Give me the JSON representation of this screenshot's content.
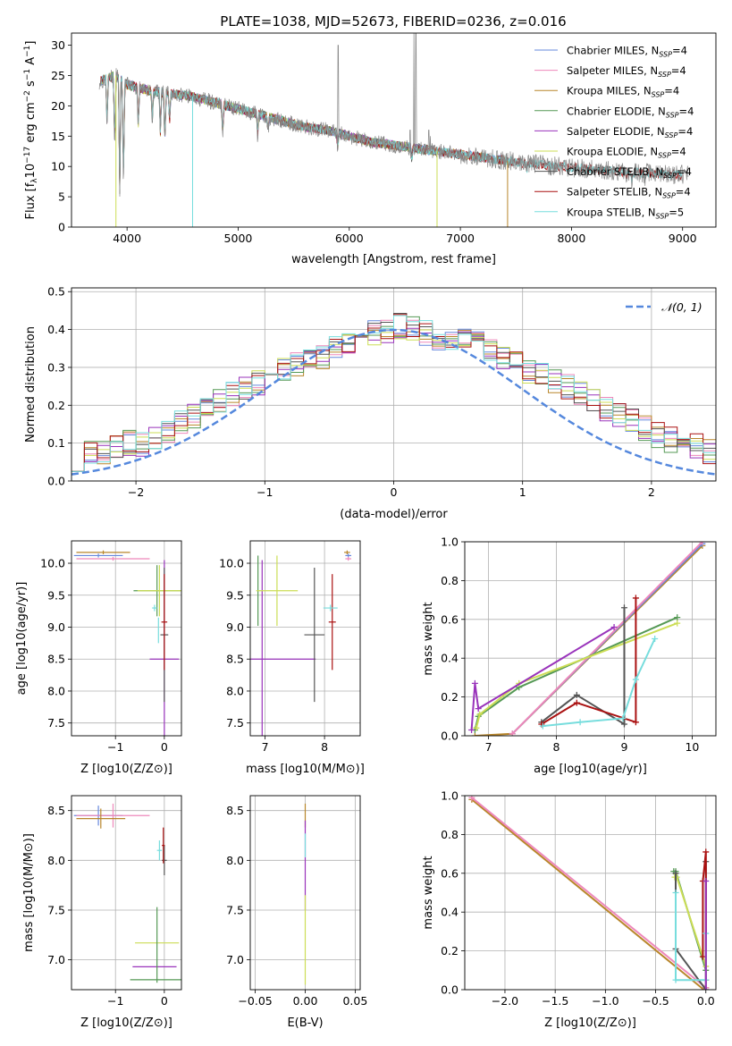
{
  "figure": {
    "title": "PLATE=1038, MJD=52673, FIBERID=0236, z=0.016"
  },
  "colors": {
    "Chabrier MILES": "#6688dd",
    "Salpeter MILES": "#ee88bb",
    "Kroupa MILES": "#b8862b",
    "Chabrier ELODIE": "#559955",
    "Salpeter ELODIE": "#9933bb",
    "Kroupa ELODIE": "#ccdd55",
    "Chabrier STELIB": "#555555",
    "Salpeter STELIB": "#aa1111",
    "Kroupa STELIB": "#77dddd",
    "data": "#888888",
    "normal": "#5588dd",
    "orange": "#dd7733",
    "lightgreen": "#bbee66"
  },
  "chart_data": [
    {
      "id": "spectrum",
      "type": "line",
      "title": "PLATE=1038, MJD=52673, FIBERID=0236, z=0.016",
      "xlabel": "wavelength [Angstrom, rest frame]",
      "ylabel": "Flux [f_λ 10^-17 erg cm^-2 s^-1 A^-1]",
      "xlim": [
        3500,
        9300
      ],
      "ylim": [
        0,
        32
      ],
      "xticks": [
        4000,
        5000,
        6000,
        7000,
        8000,
        9000
      ],
      "yticks": [
        0,
        5,
        10,
        15,
        20,
        25,
        30
      ],
      "grid": false,
      "legend_position": "top-right",
      "continuum": [
        [
          3750,
          24
        ],
        [
          3900,
          25
        ],
        [
          4000,
          23.5
        ],
        [
          4200,
          22.5
        ],
        [
          4400,
          22
        ],
        [
          4600,
          21.5
        ],
        [
          4800,
          20.5
        ],
        [
          5000,
          19.5
        ],
        [
          5200,
          18.5
        ],
        [
          5400,
          17.5
        ],
        [
          5600,
          16.5
        ],
        [
          5800,
          16
        ],
        [
          6000,
          15
        ],
        [
          6200,
          14
        ],
        [
          6400,
          13.5
        ],
        [
          6600,
          13
        ],
        [
          6800,
          12.5
        ],
        [
          7000,
          12
        ],
        [
          7200,
          11.5
        ],
        [
          7400,
          11
        ],
        [
          7600,
          10.5
        ],
        [
          7800,
          10.2
        ],
        [
          8000,
          9.8
        ],
        [
          8200,
          9.5
        ],
        [
          8400,
          9.2
        ],
        [
          8600,
          9
        ],
        [
          8800,
          8.8
        ],
        [
          9000,
          8.6
        ],
        [
          9050,
          8.6
        ]
      ],
      "absorption_lines": [
        [
          3820,
          17
        ],
        [
          3889,
          12
        ],
        [
          3934,
          4
        ],
        [
          3968,
          6
        ],
        [
          4101,
          16
        ],
        [
          4227,
          17
        ],
        [
          4300,
          15
        ],
        [
          4340,
          13
        ],
        [
          4383,
          17
        ],
        [
          4861,
          15
        ],
        [
          5175,
          15
        ],
        [
          5270,
          16
        ],
        [
          5895,
          13
        ],
        [
          6563,
          11
        ],
        [
          7600,
          9
        ],
        [
          8498,
          8
        ],
        [
          8542,
          7.5
        ],
        [
          8662,
          8
        ]
      ],
      "emission_spikes": [
        [
          5900,
          30
        ],
        [
          6548,
          16
        ],
        [
          6583,
          32
        ],
        [
          6600,
          32
        ],
        [
          6716,
          16
        ],
        [
          6731,
          15
        ]
      ],
      "series": [
        {
          "name": "Chabrier MILES",
          "nssp": "4",
          "xmax": 7400
        },
        {
          "name": "Salpeter MILES",
          "nssp": "4",
          "xmax": 7400
        },
        {
          "name": "Kroupa MILES",
          "nssp": "4",
          "xmax": 7440
        },
        {
          "name": "Chabrier ELODIE",
          "nssp": "4",
          "xmax": 6800
        },
        {
          "name": "Salpeter ELODIE",
          "nssp": "4",
          "xmax": 6800
        },
        {
          "name": "Kroupa ELODIE",
          "nssp": "4",
          "xmax": 6800
        },
        {
          "name": "Chabrier STELIB",
          "nssp": "4",
          "xmax": 9000
        },
        {
          "name": "Salpeter STELIB",
          "nssp": "4",
          "xmax": 9000
        },
        {
          "name": "Kroupa STELIB",
          "nssp": "5",
          "xmax": 9000
        }
      ]
    },
    {
      "id": "residuals",
      "type": "histogram",
      "xlabel": "(data-model)/error",
      "ylabel": "Normed distribution",
      "xlim": [
        -2.5,
        2.5
      ],
      "ylim": [
        0,
        0.51
      ],
      "xticks": [
        -2,
        -1,
        0,
        1,
        2
      ],
      "yticks": [
        0.0,
        0.1,
        0.2,
        0.3,
        0.4,
        0.5
      ],
      "grid": true,
      "legend": [
        "𝒩(0, 1)"
      ],
      "legend_position": "top-right",
      "bin_edges_start": -2.5,
      "bin_width": 0.1,
      "base_heights": [
        0.06,
        0.07,
        0.08,
        0.09,
        0.1,
        0.1,
        0.11,
        0.13,
        0.15,
        0.17,
        0.19,
        0.21,
        0.23,
        0.25,
        0.26,
        0.28,
        0.3,
        0.31,
        0.32,
        0.33,
        0.35,
        0.37,
        0.38,
        0.39,
        0.4,
        0.41,
        0.4,
        0.39,
        0.38,
        0.37,
        0.37,
        0.36,
        0.34,
        0.33,
        0.31,
        0.29,
        0.28,
        0.26,
        0.25,
        0.23,
        0.21,
        0.19,
        0.17,
        0.16,
        0.14,
        0.12,
        0.11,
        0.1,
        0.09,
        0.08
      ],
      "normal_curve": {
        "mean": 0,
        "sigma": 1
      }
    },
    {
      "id": "age-vs-Z",
      "type": "scatter",
      "xlabel": "Z [log10(Z/Z⊙)]",
      "ylabel": "age [log10(age/yr)]",
      "xlim": [
        -1.9,
        0.35
      ],
      "ylim": [
        7.3,
        10.35
      ],
      "xticks": [
        -1,
        0
      ],
      "yticks": [
        7.5,
        8.0,
        8.5,
        9.0,
        9.5,
        10.0
      ],
      "grid": true,
      "points": [
        {
          "s": "Chabrier MILES",
          "x": -1.35,
          "y": 10.12,
          "xerr": 0.5,
          "yerr": 0.03
        },
        {
          "s": "Salpeter MILES",
          "x": -1.05,
          "y": 10.07,
          "xerr": 0.75,
          "yerr": 0.03
        },
        {
          "s": "Kroupa MILES",
          "x": -1.25,
          "y": 10.17,
          "xerr": 0.55,
          "yerr": 0.03
        },
        {
          "s": "Chabrier ELODIE",
          "x": -0.15,
          "y": 9.57,
          "xerr": 0.48,
          "yerr": 0.4
        },
        {
          "s": "Salpeter ELODIE",
          "x": 0.0,
          "y": 8.5,
          "xerr": 0.3,
          "yerr": 1.55
        },
        {
          "s": "Kroupa ELODIE",
          "x": -0.1,
          "y": 9.57,
          "xerr": 0.45,
          "yerr": 0.4
        },
        {
          "s": "Chabrier STELIB",
          "x": 0.0,
          "y": 8.88,
          "xerr": 0.08,
          "yerr": 1.05
        },
        {
          "s": "Salpeter STELIB",
          "x": 0.0,
          "y": 9.08,
          "xerr": 0.06,
          "yerr": 0.75
        },
        {
          "s": "Kroupa STELIB",
          "x": -0.2,
          "y": 9.3,
          "xerr": 0.05,
          "yerr": 0.05
        },
        {
          "s": "Kroupa STELIB",
          "x": -0.12,
          "y": 8.95,
          "xerr": 0.0,
          "yerr": 0.2
        }
      ]
    },
    {
      "id": "age-vs-mass",
      "type": "scatter",
      "xlabel": "mass [log10(M/M⊙)]",
      "ylabel": "",
      "xlim": [
        6.75,
        8.6
      ],
      "ylim": [
        7.3,
        10.35
      ],
      "xticks": [
        7,
        8
      ],
      "yticks": [
        7.5,
        8.0,
        8.5,
        9.0,
        9.5,
        10.0
      ],
      "grid": true,
      "points": [
        {
          "s": "Chabrier MILES",
          "x": 8.4,
          "y": 10.12,
          "xerr": 0.05,
          "yerr": 0.03
        },
        {
          "s": "Salpeter MILES",
          "x": 8.4,
          "y": 10.07,
          "xerr": 0.05,
          "yerr": 0.03
        },
        {
          "s": "Kroupa MILES",
          "x": 8.38,
          "y": 10.17,
          "xerr": 0.05,
          "yerr": 0.03
        },
        {
          "s": "Chabrier ELODIE",
          "x": 6.88,
          "y": 9.57,
          "xerr": 0.0,
          "yerr": 0.55
        },
        {
          "s": "Salpeter ELODIE",
          "x": 6.95,
          "y": 8.5,
          "xerr": 0.9,
          "yerr": 1.55
        },
        {
          "s": "Kroupa ELODIE",
          "x": 7.2,
          "y": 9.57,
          "xerr": 0.35,
          "yerr": 0.55
        },
        {
          "s": "Chabrier STELIB",
          "x": 7.83,
          "y": 8.88,
          "xerr": 0.17,
          "yerr": 1.05
        },
        {
          "s": "Salpeter STELIB",
          "x": 8.13,
          "y": 9.08,
          "xerr": 0.06,
          "yerr": 0.75
        },
        {
          "s": "Kroupa STELIB",
          "x": 8.1,
          "y": 9.3,
          "xerr": 0.12,
          "yerr": 0.05
        }
      ]
    },
    {
      "id": "massweight-vs-age",
      "type": "line",
      "xlabel": "age [log10(age/yr)]",
      "ylabel": "mass weight",
      "xlim": [
        6.65,
        10.35
      ],
      "ylim": [
        0,
        1.0
      ],
      "xticks": [
        7,
        8,
        9,
        10
      ],
      "yticks": [
        0.0,
        0.2,
        0.4,
        0.6,
        0.8,
        1.0
      ],
      "grid": true,
      "series": [
        {
          "name": "Kroupa MILES",
          "x": [
            6.8,
            7.35,
            10.15
          ],
          "y": [
            0.0,
            0.01,
            0.98
          ]
        },
        {
          "name": "Chabrier MILES",
          "x": [
            7.35,
            10.15
          ],
          "y": [
            0.01,
            0.99
          ]
        },
        {
          "name": "Salpeter MILES",
          "x": [
            7.35,
            10.15
          ],
          "y": [
            0.01,
            1.0
          ]
        },
        {
          "name": "Chabrier ELODIE",
          "x": [
            6.8,
            6.85,
            7.45,
            9.78
          ],
          "y": [
            0.03,
            0.1,
            0.25,
            0.61
          ]
        },
        {
          "name": "Kroupa ELODIE",
          "x": [
            6.82,
            6.87,
            7.45,
            9.78
          ],
          "y": [
            0.04,
            0.11,
            0.27,
            0.58
          ]
        },
        {
          "name": "Salpeter ELODIE",
          "x": [
            6.75,
            6.8,
            6.85,
            8.85
          ],
          "y": [
            0.03,
            0.27,
            0.14,
            0.56
          ]
        },
        {
          "name": "Chabrier STELIB",
          "x": [
            7.78,
            8.3,
            9.0,
            9.0
          ],
          "y": [
            0.07,
            0.21,
            0.06,
            0.66
          ]
        },
        {
          "name": "Salpeter STELIB",
          "x": [
            7.78,
            8.3,
            9.17,
            9.17
          ],
          "y": [
            0.06,
            0.17,
            0.07,
            0.71
          ]
        },
        {
          "name": "Kroupa STELIB",
          "x": [
            7.8,
            8.35,
            8.98,
            9.17,
            9.45
          ],
          "y": [
            0.05,
            0.07,
            0.09,
            0.29,
            0.5
          ]
        }
      ]
    },
    {
      "id": "mass-vs-Z",
      "type": "scatter",
      "xlabel": "Z [log10(Z/Z⊙)]",
      "ylabel": "mass [log10(M/M⊙)]",
      "xlim": [
        -1.9,
        0.35
      ],
      "ylim": [
        6.7,
        8.65
      ],
      "xticks": [
        -1,
        0
      ],
      "yticks": [
        7.0,
        7.5,
        8.0,
        8.5
      ],
      "grid": true,
      "points": [
        {
          "s": "Chabrier MILES",
          "x": -1.35,
          "y": 8.45,
          "xerr": 0.5,
          "yerr": 0.1
        },
        {
          "s": "Salpeter MILES",
          "x": -1.05,
          "y": 8.45,
          "xerr": 0.75,
          "yerr": 0.12
        },
        {
          "s": "Kroupa MILES",
          "x": -1.3,
          "y": 8.42,
          "xerr": 0.5,
          "yerr": 0.1
        },
        {
          "s": "Chabrier ELODIE",
          "x": -0.15,
          "y": 6.8,
          "xerr": 0.55,
          "yerr": 0.0
        },
        {
          "s": "Salpeter ELODIE",
          "x": -0.2,
          "y": 6.93,
          "xerr": 0.45,
          "yerr": 0.0
        },
        {
          "s": "Kroupa ELODIE",
          "x": -0.15,
          "y": 7.17,
          "xerr": 0.45,
          "yerr": 0.0
        },
        {
          "s": "Chabrier ELODIE",
          "x": -0.15,
          "y": 7.15,
          "xerr": 0.0,
          "yerr": 0.38
        },
        {
          "s": "Chabrier STELIB",
          "x": 0.0,
          "y": 8.0,
          "xerr": 0.05,
          "yerr": 0.15
        },
        {
          "s": "Salpeter STELIB",
          "x": -0.02,
          "y": 8.15,
          "xerr": 0.03,
          "yerr": 0.18
        },
        {
          "s": "Kroupa STELIB",
          "x": -0.1,
          "y": 8.1,
          "xerr": 0.05,
          "yerr": 0.1
        }
      ]
    },
    {
      "id": "mass-vs-ebv",
      "type": "scatter",
      "xlabel": "E(B-V)",
      "ylabel": "",
      "xlim": [
        -0.055,
        0.055
      ],
      "ylim": [
        6.7,
        8.65
      ],
      "xticks": [
        -0.05,
        0.0,
        0.05
      ],
      "xticklabels": [
        "−0.05",
        "0.00",
        "0.05"
      ],
      "yticks": [
        7.0,
        7.5,
        8.0,
        8.5
      ],
      "grid": true,
      "points": [
        {
          "s": "Kroupa MILES",
          "x": 0.0,
          "y": 8.45,
          "xerr": 0.0,
          "yerr": 0.12
        },
        {
          "s": "Salpeter ELODIE",
          "x": 0.0,
          "y": 7.95,
          "xerr": 0.0,
          "yerr": 0.45
        },
        {
          "s": "Kroupa ELODIE",
          "x": 0.0,
          "y": 7.2,
          "xerr": 0.0,
          "yerr": 0.45
        },
        {
          "s": "Kroupa STELIB",
          "x": 0.0,
          "y": 8.15,
          "xerr": 0.0,
          "yerr": 0.12
        }
      ]
    },
    {
      "id": "massweight-vs-Z",
      "type": "line",
      "xlabel": "Z [log10(Z/Z⊙)]",
      "ylabel": "mass weight",
      "xlim": [
        -2.4,
        0.1
      ],
      "ylim": [
        0,
        1.0
      ],
      "xticks": [
        -2.0,
        -1.5,
        -1.0,
        -0.5,
        0.0
      ],
      "xticklabels": [
        "−2.0",
        "−1.5",
        "−1.0",
        "−0.5",
        "0.0"
      ],
      "yticks": [
        0.0,
        0.2,
        0.4,
        0.6,
        0.8,
        1.0
      ],
      "grid": true,
      "series": [
        {
          "name": "Kroupa MILES",
          "x": [
            -2.33,
            -0.02,
            0.0
          ],
          "y": [
            0.98,
            0.0,
            0.01
          ]
        },
        {
          "name": "Salpeter MILES",
          "x": [
            -2.33,
            0.0
          ],
          "y": [
            0.99,
            0.01
          ]
        },
        {
          "name": "Chabrier ELODIE",
          "x": [
            -0.32,
            -0.3,
            0.0
          ],
          "y": [
            0.61,
            0.61,
            0.1
          ]
        },
        {
          "name": "Kroupa ELODIE",
          "x": [
            -0.31,
            -0.29,
            0.0
          ],
          "y": [
            0.58,
            0.58,
            0.12
          ]
        },
        {
          "name": "Chabrier STELIB",
          "x": [
            -0.3,
            -0.3,
            0.0,
            0.0
          ],
          "y": [
            0.6,
            0.21,
            0.0,
            0.66
          ]
        },
        {
          "name": "Salpeter STELIB",
          "x": [
            0.0,
            0.0,
            -0.03,
            -0.03
          ],
          "y": [
            0.05,
            0.71,
            0.56,
            0.17
          ]
        },
        {
          "name": "Kroupa STELIB",
          "x": [
            -0.3,
            -0.3,
            0.0,
            0.0
          ],
          "y": [
            0.5,
            0.05,
            0.05,
            0.29
          ]
        },
        {
          "name": "Salpeter ELODIE",
          "x": [
            0.0,
            0.0
          ],
          "y": [
            0.0,
            0.56
          ]
        }
      ]
    }
  ]
}
